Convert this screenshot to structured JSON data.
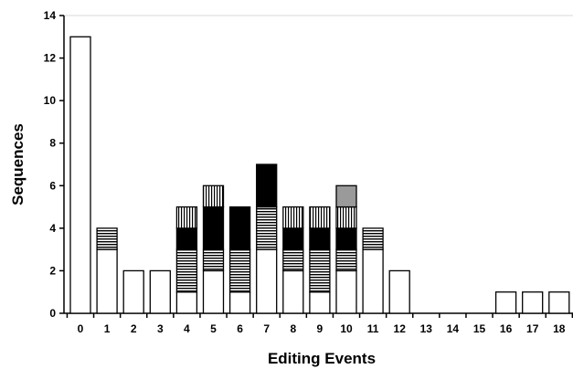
{
  "chart_data": {
    "type": "bar",
    "stacked": true,
    "title": "",
    "xlabel": "Editing Events",
    "ylabel": "Sequences",
    "ylim": [
      0,
      14
    ],
    "yticks": [
      0,
      2,
      4,
      6,
      8,
      10,
      12,
      14
    ],
    "categories": [
      "0",
      "1",
      "2",
      "3",
      "4",
      "5",
      "6",
      "7",
      "8",
      "9",
      "10",
      "11",
      "12",
      "13",
      "14",
      "15",
      "16",
      "17",
      "18"
    ],
    "grid": false,
    "legend": "none",
    "series": [
      {
        "fill": "white",
        "values": [
          13,
          3,
          2,
          2,
          1,
          2,
          1,
          3,
          2,
          1,
          2,
          3,
          2,
          0,
          0,
          0,
          1,
          1,
          1
        ]
      },
      {
        "fill": "hstripe",
        "values": [
          0,
          1,
          0,
          0,
          2,
          1,
          2,
          2,
          1,
          2,
          1,
          1,
          0,
          0,
          0,
          0,
          0,
          0,
          0
        ]
      },
      {
        "fill": "black",
        "values": [
          0,
          0,
          0,
          0,
          1,
          2,
          2,
          2,
          1,
          1,
          1,
          0,
          0,
          0,
          0,
          0,
          0,
          0,
          0
        ]
      },
      {
        "fill": "dotted",
        "values": [
          0,
          0,
          0,
          0,
          1,
          1,
          0,
          0,
          1,
          1,
          1,
          0,
          0,
          0,
          0,
          0,
          0,
          0,
          0
        ]
      },
      {
        "fill": "gray",
        "values": [
          0,
          0,
          0,
          0,
          0,
          0,
          0,
          0,
          0,
          0,
          1,
          0,
          0,
          0,
          0,
          0,
          0,
          0,
          0
        ]
      }
    ]
  }
}
